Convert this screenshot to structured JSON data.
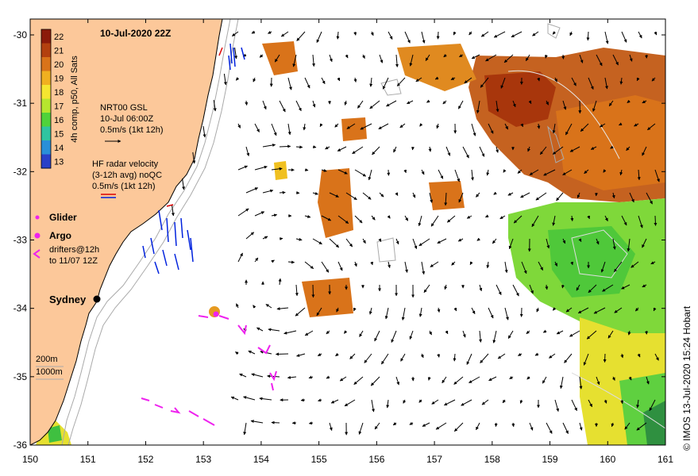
{
  "title": "10-Jul-2020 22Z",
  "colorbar": {
    "label": "4h comp, p50, All Sats",
    "ticks": [
      "22",
      "21",
      "20",
      "19",
      "18",
      "17",
      "16",
      "15",
      "14",
      "13"
    ],
    "colors": [
      "#8b1a0a",
      "#b3400f",
      "#d9731a",
      "#f0b020",
      "#f5e630",
      "#b6e62e",
      "#4fd23a",
      "#2fc4a0",
      "#2a8fd8",
      "#2a40c8"
    ]
  },
  "axes": {
    "lon_ticks": [
      "150",
      "151",
      "152",
      "153",
      "154",
      "155",
      "156",
      "157",
      "158",
      "159",
      "160",
      "161"
    ],
    "lat_ticks": [
      "-30",
      "-31",
      "-32",
      "-33",
      "-34",
      "-35",
      "-36"
    ]
  },
  "legend": {
    "gsl_1": "NRT00 GSL",
    "gsl_2": "10-Jul 06:00Z",
    "gsl_3": "0.5m/s (1kt 12h)",
    "hf_1": "HF radar velocity",
    "hf_2": "(3-12h avg) noQC",
    "hf_3": "0.5m/s (1kt 12h)",
    "glider": "Glider",
    "argo": "Argo",
    "drifters_1": "drifters@12h",
    "drifters_2": "to 11/07 12Z",
    "depth_1": "200m",
    "depth_2": "1000m"
  },
  "places": {
    "sydney": "Sydney"
  },
  "credit": "© IMOS 13-Jul-2020 15:24 Hobart",
  "colors": {
    "land": "#fcc89a",
    "accent_glider": "#ee22ee",
    "hf_red": "#dd0000",
    "hf_blue": "#0022dd"
  }
}
